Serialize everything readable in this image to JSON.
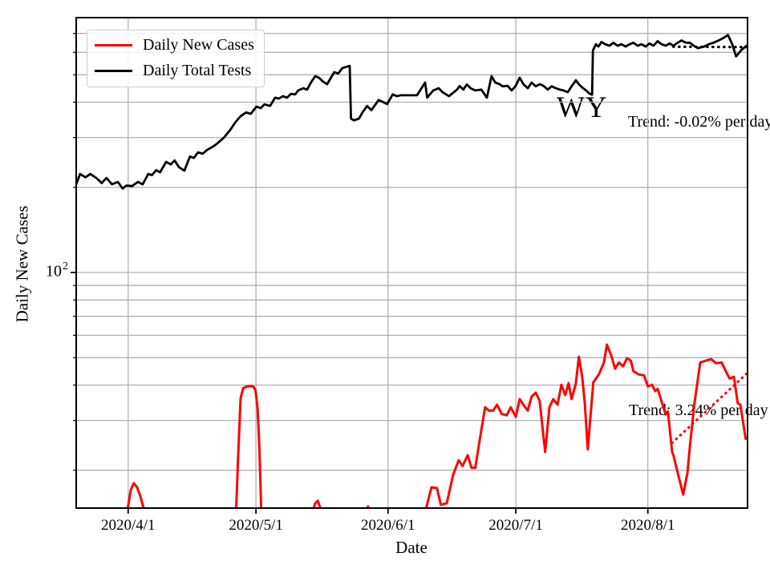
{
  "chart_data": {
    "type": "line",
    "xlabel": "Date",
    "ylabel": "Daily New Cases",
    "y_scale": "log",
    "x_unit": "days_since_2020-04-01",
    "xlim": [
      -12.2,
      145.4
    ],
    "ylim": [
      14.7,
      796
    ],
    "grid": true,
    "legend_position": "upper-left",
    "legend": [
      {
        "label": "Daily New Cases",
        "color": "#ff0000"
      },
      {
        "label": "Daily Total Tests",
        "color": "#000000"
      }
    ],
    "colors": {
      "grid": "#b0b0b0",
      "cases": "#ff0000",
      "tests": "#000000",
      "spine": "#000000"
    },
    "x_ticks": [
      {
        "d": 0,
        "label": "2020/4/1"
      },
      {
        "d": 30,
        "label": "2020/5/1"
      },
      {
        "d": 61,
        "label": "2020/6/1"
      },
      {
        "d": 91,
        "label": "2020/7/1"
      },
      {
        "d": 122,
        "label": "2020/8/1"
      }
    ],
    "y_major_tick": {
      "mantissa": "10",
      "exponent": "2",
      "value": 100
    },
    "y_minor_tick_values": [
      20,
      30,
      40,
      50,
      60,
      70,
      80,
      90,
      200,
      300,
      400,
      500,
      600,
      700
    ],
    "y_grid_values": [
      20,
      30,
      40,
      50,
      60,
      70,
      80,
      90,
      100,
      200,
      300,
      400,
      500,
      600,
      700
    ],
    "annotations": {
      "state": "WY",
      "tests_trend_label": "Trend: -0.02% per day",
      "cases_trend_label": "Trend: 3.24% per day"
    },
    "series_tests": {
      "name": "Daily Total Tests",
      "points": [
        [
          -12.2,
          205
        ],
        [
          -11.3,
          223
        ],
        [
          -10,
          217
        ],
        [
          -8.9,
          223
        ],
        [
          -7.5,
          216
        ],
        [
          -6.2,
          207
        ],
        [
          -5.1,
          216
        ],
        [
          -3.8,
          205
        ],
        [
          -2.4,
          209
        ],
        [
          -1.3,
          198
        ],
        [
          -0.4,
          203
        ],
        [
          0.9,
          202
        ],
        [
          2.3,
          209
        ],
        [
          3.4,
          205
        ],
        [
          4.7,
          223
        ],
        [
          5.6,
          221
        ],
        [
          6.6,
          230
        ],
        [
          7.5,
          226
        ],
        [
          8.9,
          246
        ],
        [
          10,
          241
        ],
        [
          10.9,
          249
        ],
        [
          11.9,
          236
        ],
        [
          13.2,
          229
        ],
        [
          14.5,
          257
        ],
        [
          15.4,
          254
        ],
        [
          16.4,
          266
        ],
        [
          17.5,
          263
        ],
        [
          18.5,
          271
        ],
        [
          19.8,
          278
        ],
        [
          20.7,
          284
        ],
        [
          22.5,
          300
        ],
        [
          24,
          320
        ],
        [
          25.2,
          340
        ],
        [
          26.4,
          357
        ],
        [
          27.7,
          368
        ],
        [
          28.8,
          364
        ],
        [
          30.1,
          386
        ],
        [
          31.1,
          381
        ],
        [
          32,
          393
        ],
        [
          33.3,
          388
        ],
        [
          34.5,
          415
        ],
        [
          35.4,
          412
        ],
        [
          36.3,
          420
        ],
        [
          37.3,
          415
        ],
        [
          38.2,
          428
        ],
        [
          39.2,
          426
        ],
        [
          39.9,
          440
        ],
        [
          41.1,
          448
        ],
        [
          42,
          443
        ],
        [
          42.9,
          469
        ],
        [
          43.9,
          494
        ],
        [
          44.8,
          488
        ],
        [
          45.8,
          472
        ],
        [
          46.7,
          463
        ],
        [
          48.4,
          511
        ],
        [
          49.3,
          505
        ],
        [
          50.3,
          528
        ],
        [
          51.5,
          535
        ],
        [
          52,
          537
        ],
        [
          52.3,
          350
        ],
        [
          53,
          345
        ],
        [
          54.2,
          350
        ],
        [
          55,
          368
        ],
        [
          56.1,
          388
        ],
        [
          57.1,
          375
        ],
        [
          58.8,
          407
        ],
        [
          59.9,
          400
        ],
        [
          60.8,
          394
        ],
        [
          62.1,
          426
        ],
        [
          63.1,
          420
        ],
        [
          64,
          423
        ],
        [
          65.9,
          423
        ],
        [
          67.8,
          423
        ],
        [
          69.7,
          469
        ],
        [
          70.2,
          415
        ],
        [
          71.6,
          440
        ],
        [
          72.9,
          448
        ],
        [
          73.8,
          434
        ],
        [
          75.3,
          420
        ],
        [
          77.2,
          443
        ],
        [
          77.8,
          456
        ],
        [
          78.7,
          443
        ],
        [
          79.5,
          462
        ],
        [
          80.4,
          448
        ],
        [
          81.5,
          440
        ],
        [
          82.9,
          443
        ],
        [
          84.2,
          415
        ],
        [
          85.3,
          494
        ],
        [
          86.2,
          469
        ],
        [
          87.2,
          463
        ],
        [
          87.9,
          455
        ],
        [
          89.1,
          457
        ],
        [
          90,
          440
        ],
        [
          90.9,
          455
        ],
        [
          91.9,
          488
        ],
        [
          92.8,
          463
        ],
        [
          93.8,
          448
        ],
        [
          94.7,
          469
        ],
        [
          95.7,
          455
        ],
        [
          96.6,
          463
        ],
        [
          97.5,
          457
        ],
        [
          98.5,
          443
        ],
        [
          99.4,
          455
        ],
        [
          100.4,
          448
        ],
        [
          101.3,
          443
        ],
        [
          102.2,
          440
        ],
        [
          103.2,
          434
        ],
        [
          104.1,
          455
        ],
        [
          105.1,
          478
        ],
        [
          105.8,
          463
        ],
        [
          106.8,
          448
        ],
        [
          107.5,
          440
        ],
        [
          108.3,
          429
        ],
        [
          108.9,
          425
        ],
        [
          109.1,
          609
        ],
        [
          109.8,
          641
        ],
        [
          110.4,
          629
        ],
        [
          111.1,
          653
        ],
        [
          112,
          641
        ],
        [
          113,
          633
        ],
        [
          113.9,
          649
        ],
        [
          114.9,
          633
        ],
        [
          115.8,
          641
        ],
        [
          116.8,
          629
        ],
        [
          117.7,
          641
        ],
        [
          118.6,
          649
        ],
        [
          119.6,
          633
        ],
        [
          120.5,
          641
        ],
        [
          121.5,
          629
        ],
        [
          122.4,
          645
        ],
        [
          123.3,
          633
        ],
        [
          124.3,
          657
        ],
        [
          125.2,
          641
        ],
        [
          126.2,
          633
        ],
        [
          127.1,
          645
        ],
        [
          128,
          633
        ],
        [
          129,
          649
        ],
        [
          129.9,
          661
        ],
        [
          130.9,
          649
        ],
        [
          131.8,
          649
        ],
        [
          132.8,
          633
        ],
        [
          133.7,
          621
        ],
        [
          135.2,
          629
        ],
        [
          136.3,
          641
        ],
        [
          137.4,
          649
        ],
        [
          138.6,
          661
        ],
        [
          139.7,
          674
        ],
        [
          140.8,
          691
        ],
        [
          141.8,
          641
        ],
        [
          142.7,
          581
        ],
        [
          144,
          613
        ],
        [
          145.4,
          637
        ]
      ]
    },
    "series_cases": {
      "name": "Daily New Cases",
      "segments": [
        [
          [
            -0.6,
            13.2
          ],
          [
            0.6,
            17
          ],
          [
            1.3,
            18
          ],
          [
            2.1,
            17.4
          ],
          [
            2.8,
            16.3
          ],
          [
            3.9,
            14.2
          ],
          [
            4.3,
            13
          ]
        ],
        [
          [
            25.2,
            12.5
          ],
          [
            25.8,
            22
          ],
          [
            26.4,
            36
          ],
          [
            27,
            39
          ],
          [
            27.7,
            39.5
          ],
          [
            28.7,
            39.7
          ],
          [
            29.4,
            39.5
          ],
          [
            29.9,
            38.3
          ],
          [
            30.4,
            33
          ],
          [
            30.8,
            24
          ],
          [
            31.2,
            15
          ],
          [
            31.5,
            12.5
          ]
        ],
        [
          [
            43,
            13.2
          ],
          [
            43.8,
            15.2
          ],
          [
            44.5,
            15.6
          ],
          [
            45.2,
            14.6
          ],
          [
            45.8,
            13.2
          ]
        ],
        [
          [
            55.8,
            13.5
          ],
          [
            56.3,
            14.9
          ],
          [
            56.9,
            13.5
          ]
        ],
        [
          [
            69.8,
            13.5
          ],
          [
            70,
            14.8
          ],
          [
            71.2,
            17.4
          ],
          [
            72.5,
            17.3
          ],
          [
            73.4,
            15.1
          ],
          [
            74.8,
            15.3
          ],
          [
            76.3,
            19.3
          ],
          [
            77.6,
            21.7
          ],
          [
            78.5,
            20.7
          ],
          [
            79.7,
            22.6
          ],
          [
            80.6,
            20.4
          ],
          [
            81.5,
            20.4
          ],
          [
            82.5,
            25.4
          ],
          [
            83.8,
            33.4
          ],
          [
            84.7,
            32.5
          ],
          [
            85.7,
            32.5
          ],
          [
            86.6,
            34.1
          ],
          [
            87.7,
            31.6
          ],
          [
            88.9,
            31.3
          ],
          [
            89.8,
            33.4
          ],
          [
            91,
            30.9
          ],
          [
            91.9,
            35.7
          ],
          [
            92.8,
            34.1
          ],
          [
            93.8,
            32.5
          ],
          [
            94.7,
            36.4
          ],
          [
            95.7,
            37.6
          ],
          [
            96.6,
            35.2
          ],
          [
            97.9,
            23.2
          ],
          [
            98.9,
            33.4
          ],
          [
            99.8,
            35.7
          ],
          [
            100.8,
            34.1
          ],
          [
            101.7,
            40.1
          ],
          [
            102.6,
            36.9
          ],
          [
            103.4,
            40.6
          ],
          [
            104.1,
            35.7
          ],
          [
            105.1,
            40.6
          ],
          [
            105.8,
            50.4
          ],
          [
            106.6,
            42.8
          ],
          [
            107.2,
            34.5
          ],
          [
            107.9,
            23.7
          ],
          [
            109.2,
            40.9
          ],
          [
            110.5,
            43.6
          ],
          [
            111.7,
            48.1
          ],
          [
            112.4,
            55.6
          ],
          [
            113.5,
            50.4
          ],
          [
            114.3,
            45.7
          ],
          [
            115.2,
            48.1
          ],
          [
            116.2,
            46.6
          ],
          [
            117.1,
            49.8
          ],
          [
            118,
            48.8
          ],
          [
            118.6,
            44.8
          ],
          [
            119.9,
            43.6
          ],
          [
            121.1,
            43.3
          ],
          [
            122,
            39.6
          ],
          [
            123,
            40.1
          ],
          [
            123.7,
            38.1
          ],
          [
            124.3,
            38.8
          ],
          [
            126.2,
            31.5
          ],
          [
            126.7,
            32.3
          ],
          [
            127.7,
            23.2
          ],
          [
            128,
            22.6
          ],
          [
            129,
            19.6
          ],
          [
            130.3,
            16.4
          ],
          [
            131.3,
            19.6
          ],
          [
            131.8,
            23.8
          ],
          [
            132.9,
            34.1
          ],
          [
            134.3,
            48.1
          ],
          [
            135.6,
            48.8
          ],
          [
            136.9,
            49.4
          ],
          [
            138,
            47.8
          ],
          [
            139.3,
            48.1
          ],
          [
            140.7,
            43.6
          ],
          [
            141.2,
            42.2
          ],
          [
            142.2,
            42.8
          ],
          [
            143.1,
            34.5
          ],
          [
            143.7,
            34.1
          ],
          [
            145,
            25.6
          ]
        ]
      ]
    },
    "trend_tests": {
      "rate_label": "-0.02% per day",
      "points": [
        [
          128,
          628
        ],
        [
          145.4,
          626
        ]
      ]
    },
    "trend_cases": {
      "rate_label": "3.24% per day",
      "points": [
        [
          127.7,
          25
        ],
        [
          145.6,
          44.5
        ]
      ]
    }
  }
}
